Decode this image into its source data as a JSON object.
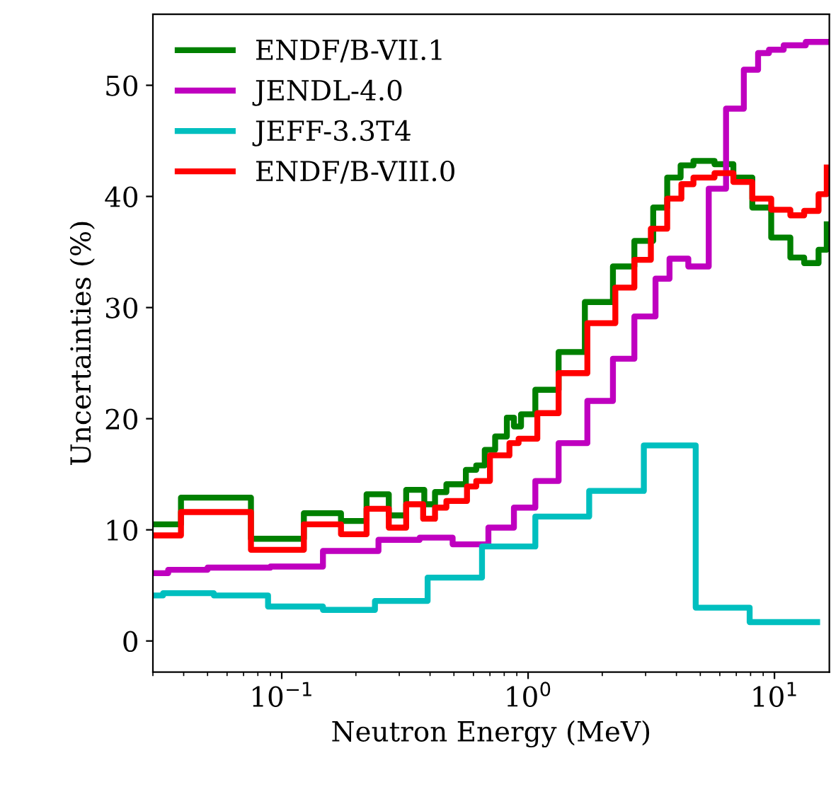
{
  "chart_data": {
    "type": "step",
    "xlabel": "Neutron Energy (MeV)",
    "ylabel": "Uncertainties (%)",
    "log": "x",
    "legend": "top left",
    "grid": false,
    "xlim": [
      0.03,
      16.7
    ],
    "ylim": [
      -2.8,
      56.4
    ],
    "xticks": [
      {
        "value": 0.1,
        "label": "10$^{−1}$"
      },
      {
        "value": 1,
        "label": "10$^{0}$"
      },
      {
        "value": 10,
        "label": "10$^{1}$"
      }
    ],
    "yticks": [
      0,
      10,
      20,
      30,
      40,
      50
    ],
    "series": [
      {
        "name": "ENDF/B-VII.1",
        "color": "#008000",
        "x": [
          0.03,
          0.039,
          0.075,
          0.123,
          0.174,
          0.221,
          0.272,
          0.32,
          0.379,
          0.419,
          0.466,
          0.559,
          0.616,
          0.667,
          0.735,
          0.82,
          0.876,
          0.936,
          1.07,
          1.33,
          1.7,
          2.21,
          2.7,
          3.22,
          3.67,
          4.16,
          4.69,
          5.71,
          6.81,
          8.13,
          9.7,
          11.6,
          13.2,
          15.1,
          16.3
        ],
        "values": [
          10.5,
          12.9,
          9.2,
          11.5,
          10.8,
          13.2,
          11.3,
          13.6,
          12.3,
          13.4,
          14.1,
          15.4,
          15.8,
          17.2,
          18.4,
          20.1,
          19.3,
          20.4,
          22.6,
          26.0,
          30.5,
          33.7,
          36.0,
          39.0,
          41.7,
          42.8,
          43.2,
          42.9,
          41.7,
          39.0,
          36.3,
          34.5,
          34.0,
          35.2,
          37.5
        ]
      },
      {
        "name": "JENDL-4.0",
        "color": "#bf00bf",
        "x": [
          0.03,
          0.0346,
          0.05,
          0.09,
          0.147,
          0.247,
          0.363,
          0.494,
          0.69,
          0.876,
          1.07,
          1.33,
          1.74,
          2.21,
          2.7,
          3.29,
          3.75,
          4.47,
          5.41,
          6.36,
          7.51,
          8.58,
          9.5,
          10.9,
          13.4,
          16.3
        ],
        "values": [
          6.1,
          6.4,
          6.6,
          6.7,
          8.1,
          9.1,
          9.3,
          8.7,
          10.2,
          12.0,
          14.4,
          17.8,
          21.6,
          25.4,
          29.2,
          32.6,
          34.4,
          33.7,
          40.7,
          47.9,
          51.4,
          52.9,
          53.2,
          53.6,
          53.9,
          53.9
        ]
      },
      {
        "name": "JEFF-3.3T4",
        "color": "#00bfbf",
        "x": [
          0.03,
          0.033,
          0.053,
          0.088,
          0.147,
          0.239,
          0.391,
          0.65,
          1.07,
          1.77,
          2.95,
          4.79,
          7.93,
          14.9
        ],
        "values": [
          4.1,
          4.3,
          4.1,
          3.1,
          2.8,
          3.6,
          5.7,
          8.5,
          11.2,
          13.5,
          17.6,
          3.0,
          1.7,
          1.7
        ]
      },
      {
        "name": "ENDF/B-VIII.0",
        "color": "#ff0000",
        "x": [
          0.03,
          0.039,
          0.075,
          0.123,
          0.174,
          0.221,
          0.272,
          0.32,
          0.375,
          0.419,
          0.466,
          0.565,
          0.616,
          0.7,
          0.84,
          0.915,
          1.09,
          1.33,
          1.74,
          2.26,
          2.7,
          3.15,
          3.67,
          4.19,
          4.69,
          5.71,
          6.81,
          8.13,
          9.7,
          11.6,
          13.2,
          15.1,
          16.3
        ],
        "values": [
          9.5,
          11.6,
          8.2,
          10.5,
          9.6,
          11.9,
          10.2,
          12.3,
          11.0,
          12.0,
          12.6,
          13.9,
          14.4,
          16.7,
          17.8,
          18.2,
          20.5,
          24.1,
          28.6,
          31.8,
          34.3,
          37.1,
          39.8,
          41.1,
          41.7,
          42.1,
          41.3,
          39.8,
          38.8,
          38.3,
          38.7,
          40.2,
          42.6
        ]
      }
    ]
  }
}
